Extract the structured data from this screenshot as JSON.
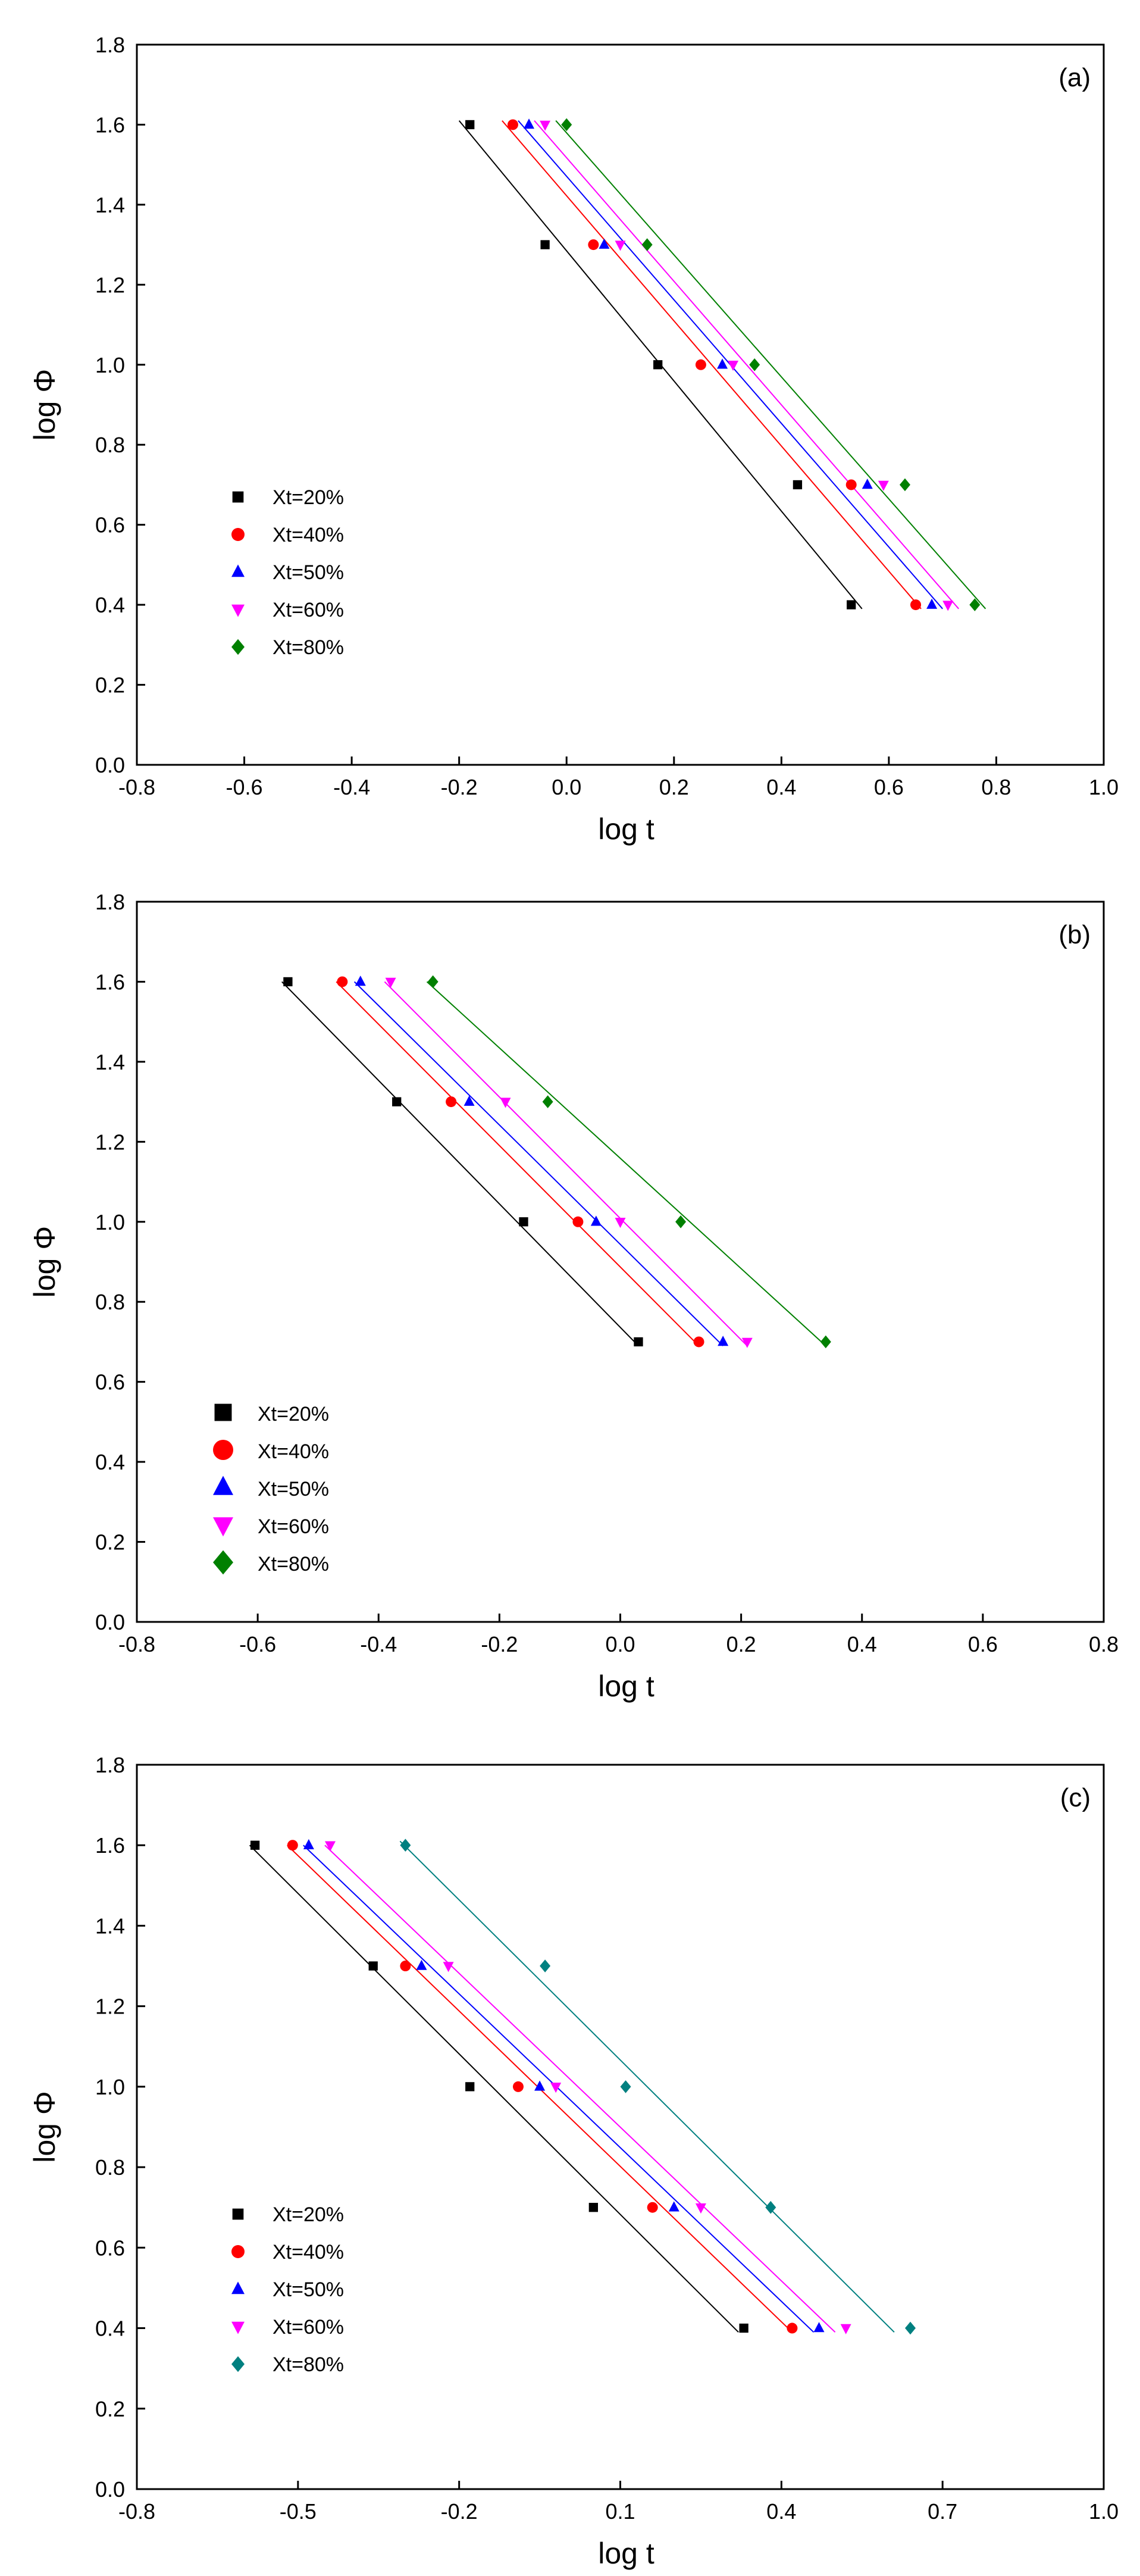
{
  "chart_data": [
    {
      "type": "scatter",
      "panel_label": "(a)",
      "xlabel": "log t",
      "ylabel": "log Φ",
      "xlim": [
        -0.8,
        1.0
      ],
      "ylim": [
        0.0,
        1.8
      ],
      "xticks": [
        "-0.8",
        "-0.6",
        "-0.4",
        "-0.2",
        "0.0",
        "0.2",
        "0.4",
        "0.6",
        "0.8",
        "1.0"
      ],
      "yticks": [
        "0.0",
        "0.2",
        "0.4",
        "0.6",
        "0.8",
        "1.0",
        "1.2",
        "1.4",
        "1.6",
        "1.8"
      ],
      "legend_position": "left",
      "grid": false,
      "series": [
        {
          "name": "Xt=20%",
          "color": "#000000",
          "marker": "square",
          "x": [
            -0.18,
            -0.04,
            0.17,
            0.43,
            0.53
          ],
          "y": [
            1.6,
            1.3,
            1.0,
            0.7,
            0.4
          ],
          "fit": [
            [
              -0.2,
              1.61
            ],
            [
              0.55,
              0.39
            ]
          ]
        },
        {
          "name": "Xt=40%",
          "color": "#ff0000",
          "marker": "circle",
          "x": [
            -0.1,
            0.05,
            0.25,
            0.53,
            0.65
          ],
          "y": [
            1.6,
            1.3,
            1.0,
            0.7,
            0.4
          ],
          "fit": [
            [
              -0.12,
              1.61
            ],
            [
              0.66,
              0.39
            ]
          ]
        },
        {
          "name": "Xt=50%",
          "color": "#0000ff",
          "marker": "triangle-up",
          "x": [
            -0.07,
            0.07,
            0.29,
            0.56,
            0.68
          ],
          "y": [
            1.6,
            1.3,
            1.0,
            0.7,
            0.4
          ],
          "fit": [
            [
              -0.09,
              1.61
            ],
            [
              0.7,
              0.39
            ]
          ]
        },
        {
          "name": "Xt=60%",
          "color": "#ff00ff",
          "marker": "triangle-down",
          "x": [
            -0.04,
            0.1,
            0.31,
            0.59,
            0.71
          ],
          "y": [
            1.6,
            1.3,
            1.0,
            0.7,
            0.4
          ],
          "fit": [
            [
              -0.06,
              1.61
            ],
            [
              0.73,
              0.39
            ]
          ]
        },
        {
          "name": "Xt=80%",
          "color": "#008000",
          "marker": "diamond",
          "x": [
            0.0,
            0.15,
            0.35,
            0.63,
            0.76
          ],
          "y": [
            1.6,
            1.3,
            1.0,
            0.7,
            0.4
          ],
          "fit": [
            [
              -0.02,
              1.61
            ],
            [
              0.78,
              0.39
            ]
          ]
        }
      ]
    },
    {
      "type": "scatter",
      "panel_label": "(b)",
      "xlabel": "log t",
      "ylabel": "log Φ",
      "xlim": [
        -0.8,
        0.8
      ],
      "ylim": [
        0.0,
        1.8
      ],
      "xticks": [
        "-0.8",
        "-0.6",
        "-0.4",
        "-0.2",
        "0.0",
        "0.2",
        "0.4",
        "0.6",
        "0.8"
      ],
      "yticks": [
        "0.0",
        "0.2",
        "0.4",
        "0.6",
        "0.8",
        "1.0",
        "1.2",
        "1.4",
        "1.6",
        "1.8"
      ],
      "legend_position": "left",
      "grid": false,
      "series": [
        {
          "name": "Xt=20%",
          "color": "#000000",
          "marker": "square",
          "x": [
            -0.55,
            -0.37,
            -0.16,
            0.03
          ],
          "y": [
            1.6,
            1.3,
            1.0,
            0.7
          ],
          "fit": [
            [
              -0.56,
              1.6
            ],
            [
              0.03,
              0.69
            ]
          ]
        },
        {
          "name": "Xt=40%",
          "color": "#ff0000",
          "marker": "circle",
          "x": [
            -0.46,
            -0.28,
            -0.07,
            0.13
          ],
          "y": [
            1.6,
            1.3,
            1.0,
            0.7
          ],
          "fit": [
            [
              -0.47,
              1.6
            ],
            [
              0.13,
              0.69
            ]
          ]
        },
        {
          "name": "Xt=50%",
          "color": "#0000ff",
          "marker": "triangle-up",
          "x": [
            -0.43,
            -0.25,
            -0.04,
            0.17
          ],
          "y": [
            1.6,
            1.3,
            1.0,
            0.7
          ],
          "fit": [
            [
              -0.44,
              1.6
            ],
            [
              0.17,
              0.69
            ]
          ]
        },
        {
          "name": "Xt=60%",
          "color": "#ff00ff",
          "marker": "triangle-down",
          "x": [
            -0.38,
            -0.19,
            0.0,
            0.21
          ],
          "y": [
            1.6,
            1.3,
            1.0,
            0.7
          ],
          "fit": [
            [
              -0.39,
              1.6
            ],
            [
              0.21,
              0.69
            ]
          ]
        },
        {
          "name": "Xt=80%",
          "color": "#008000",
          "marker": "diamond",
          "x": [
            -0.31,
            -0.12,
            0.1,
            0.34
          ],
          "y": [
            1.6,
            1.3,
            1.0,
            0.7
          ],
          "fit": [
            [
              -0.32,
              1.6
            ],
            [
              0.34,
              0.69
            ]
          ]
        }
      ]
    },
    {
      "type": "scatter",
      "panel_label": "(c)",
      "xlabel": "log t",
      "ylabel": "log Φ",
      "xlim": [
        -0.8,
        1.0
      ],
      "ylim": [
        0.0,
        1.8
      ],
      "xticks": [
        "-0.8",
        "-0.5",
        "-0.2",
        "0.1",
        "0.4",
        "0.7",
        "1.0"
      ],
      "yticks": [
        "0.0",
        "0.2",
        "0.4",
        "0.6",
        "0.8",
        "1.0",
        "1.2",
        "1.4",
        "1.6",
        "1.8"
      ],
      "legend_position": "left",
      "grid": false,
      "series": [
        {
          "name": "Xt=20%",
          "color": "#000000",
          "marker": "square",
          "x": [
            -0.58,
            -0.36,
            -0.18,
            0.05,
            0.33
          ],
          "y": [
            1.6,
            1.3,
            1.0,
            0.7,
            0.4
          ],
          "fit": [
            [
              -0.59,
              1.6
            ],
            [
              0.32,
              0.39
            ]
          ]
        },
        {
          "name": "Xt=40%",
          "color": "#ff0000",
          "marker": "circle",
          "x": [
            -0.51,
            -0.3,
            -0.09,
            0.16,
            0.42
          ],
          "y": [
            1.6,
            1.3,
            1.0,
            0.7,
            0.4
          ],
          "fit": [
            [
              -0.52,
              1.6
            ],
            [
              0.42,
              0.39
            ]
          ]
        },
        {
          "name": "Xt=50%",
          "color": "#0000ff",
          "marker": "triangle-up",
          "x": [
            -0.48,
            -0.27,
            -0.05,
            0.2,
            0.47
          ],
          "y": [
            1.6,
            1.3,
            1.0,
            0.7,
            0.4
          ],
          "fit": [
            [
              -0.49,
              1.6
            ],
            [
              0.46,
              0.39
            ]
          ]
        },
        {
          "name": "Xt=60%",
          "color": "#ff00ff",
          "marker": "triangle-down",
          "x": [
            -0.44,
            -0.22,
            -0.02,
            0.25,
            0.52
          ],
          "y": [
            1.6,
            1.3,
            1.0,
            0.7,
            0.4
          ],
          "fit": [
            [
              -0.45,
              1.6
            ],
            [
              0.5,
              0.39
            ]
          ]
        },
        {
          "name": "Xt=80%",
          "color": "#008080",
          "marker": "diamond",
          "x": [
            -0.3,
            -0.04,
            0.11,
            0.38,
            0.64
          ],
          "y": [
            1.6,
            1.3,
            1.0,
            0.7,
            0.4
          ],
          "fit": [
            [
              -0.31,
              1.61
            ],
            [
              0.61,
              0.39
            ]
          ]
        }
      ]
    }
  ]
}
